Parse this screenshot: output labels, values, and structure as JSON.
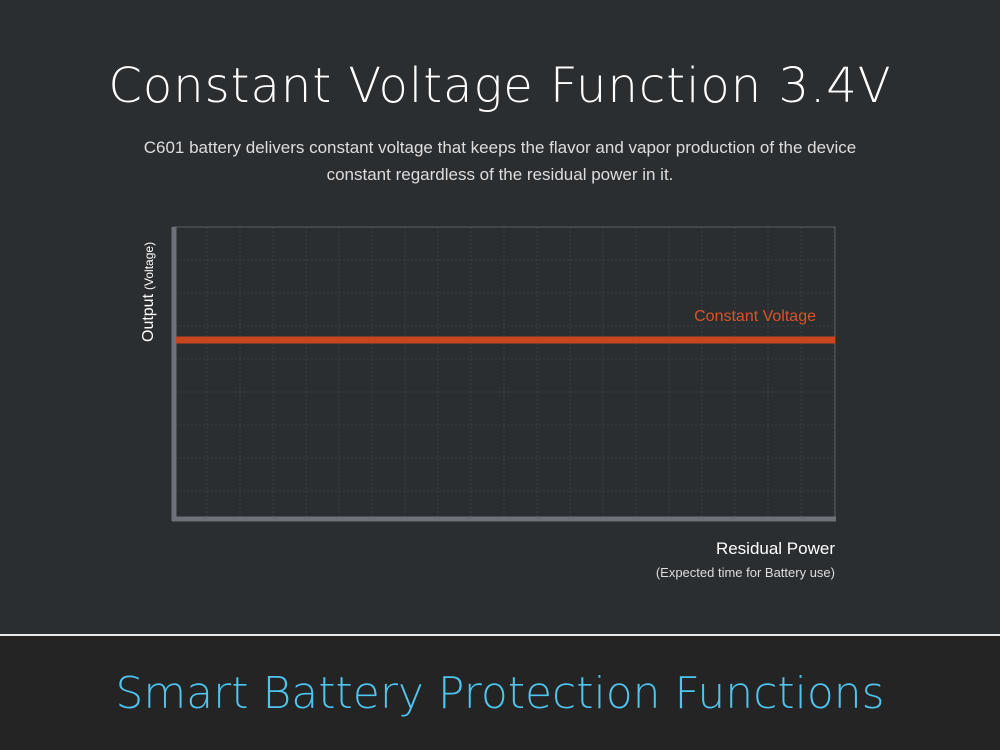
{
  "header": {
    "title": "Constant Voltage Function 3.4V",
    "description": [
      "C601 battery delivers constant voltage that keeps the flavor and vapor production of the device",
      "constant regardless of the residual power in it."
    ]
  },
  "diagram": {
    "y_axis_label": "Output",
    "y_axis_sublabel": "(Voltage)",
    "line_label": "Constant Voltage",
    "x_axis_label": "Residual Power",
    "x_axis_sublabel": "(Expected time for Battery use)"
  },
  "footer": {
    "title": "Smart Battery Protection Functions"
  }
}
